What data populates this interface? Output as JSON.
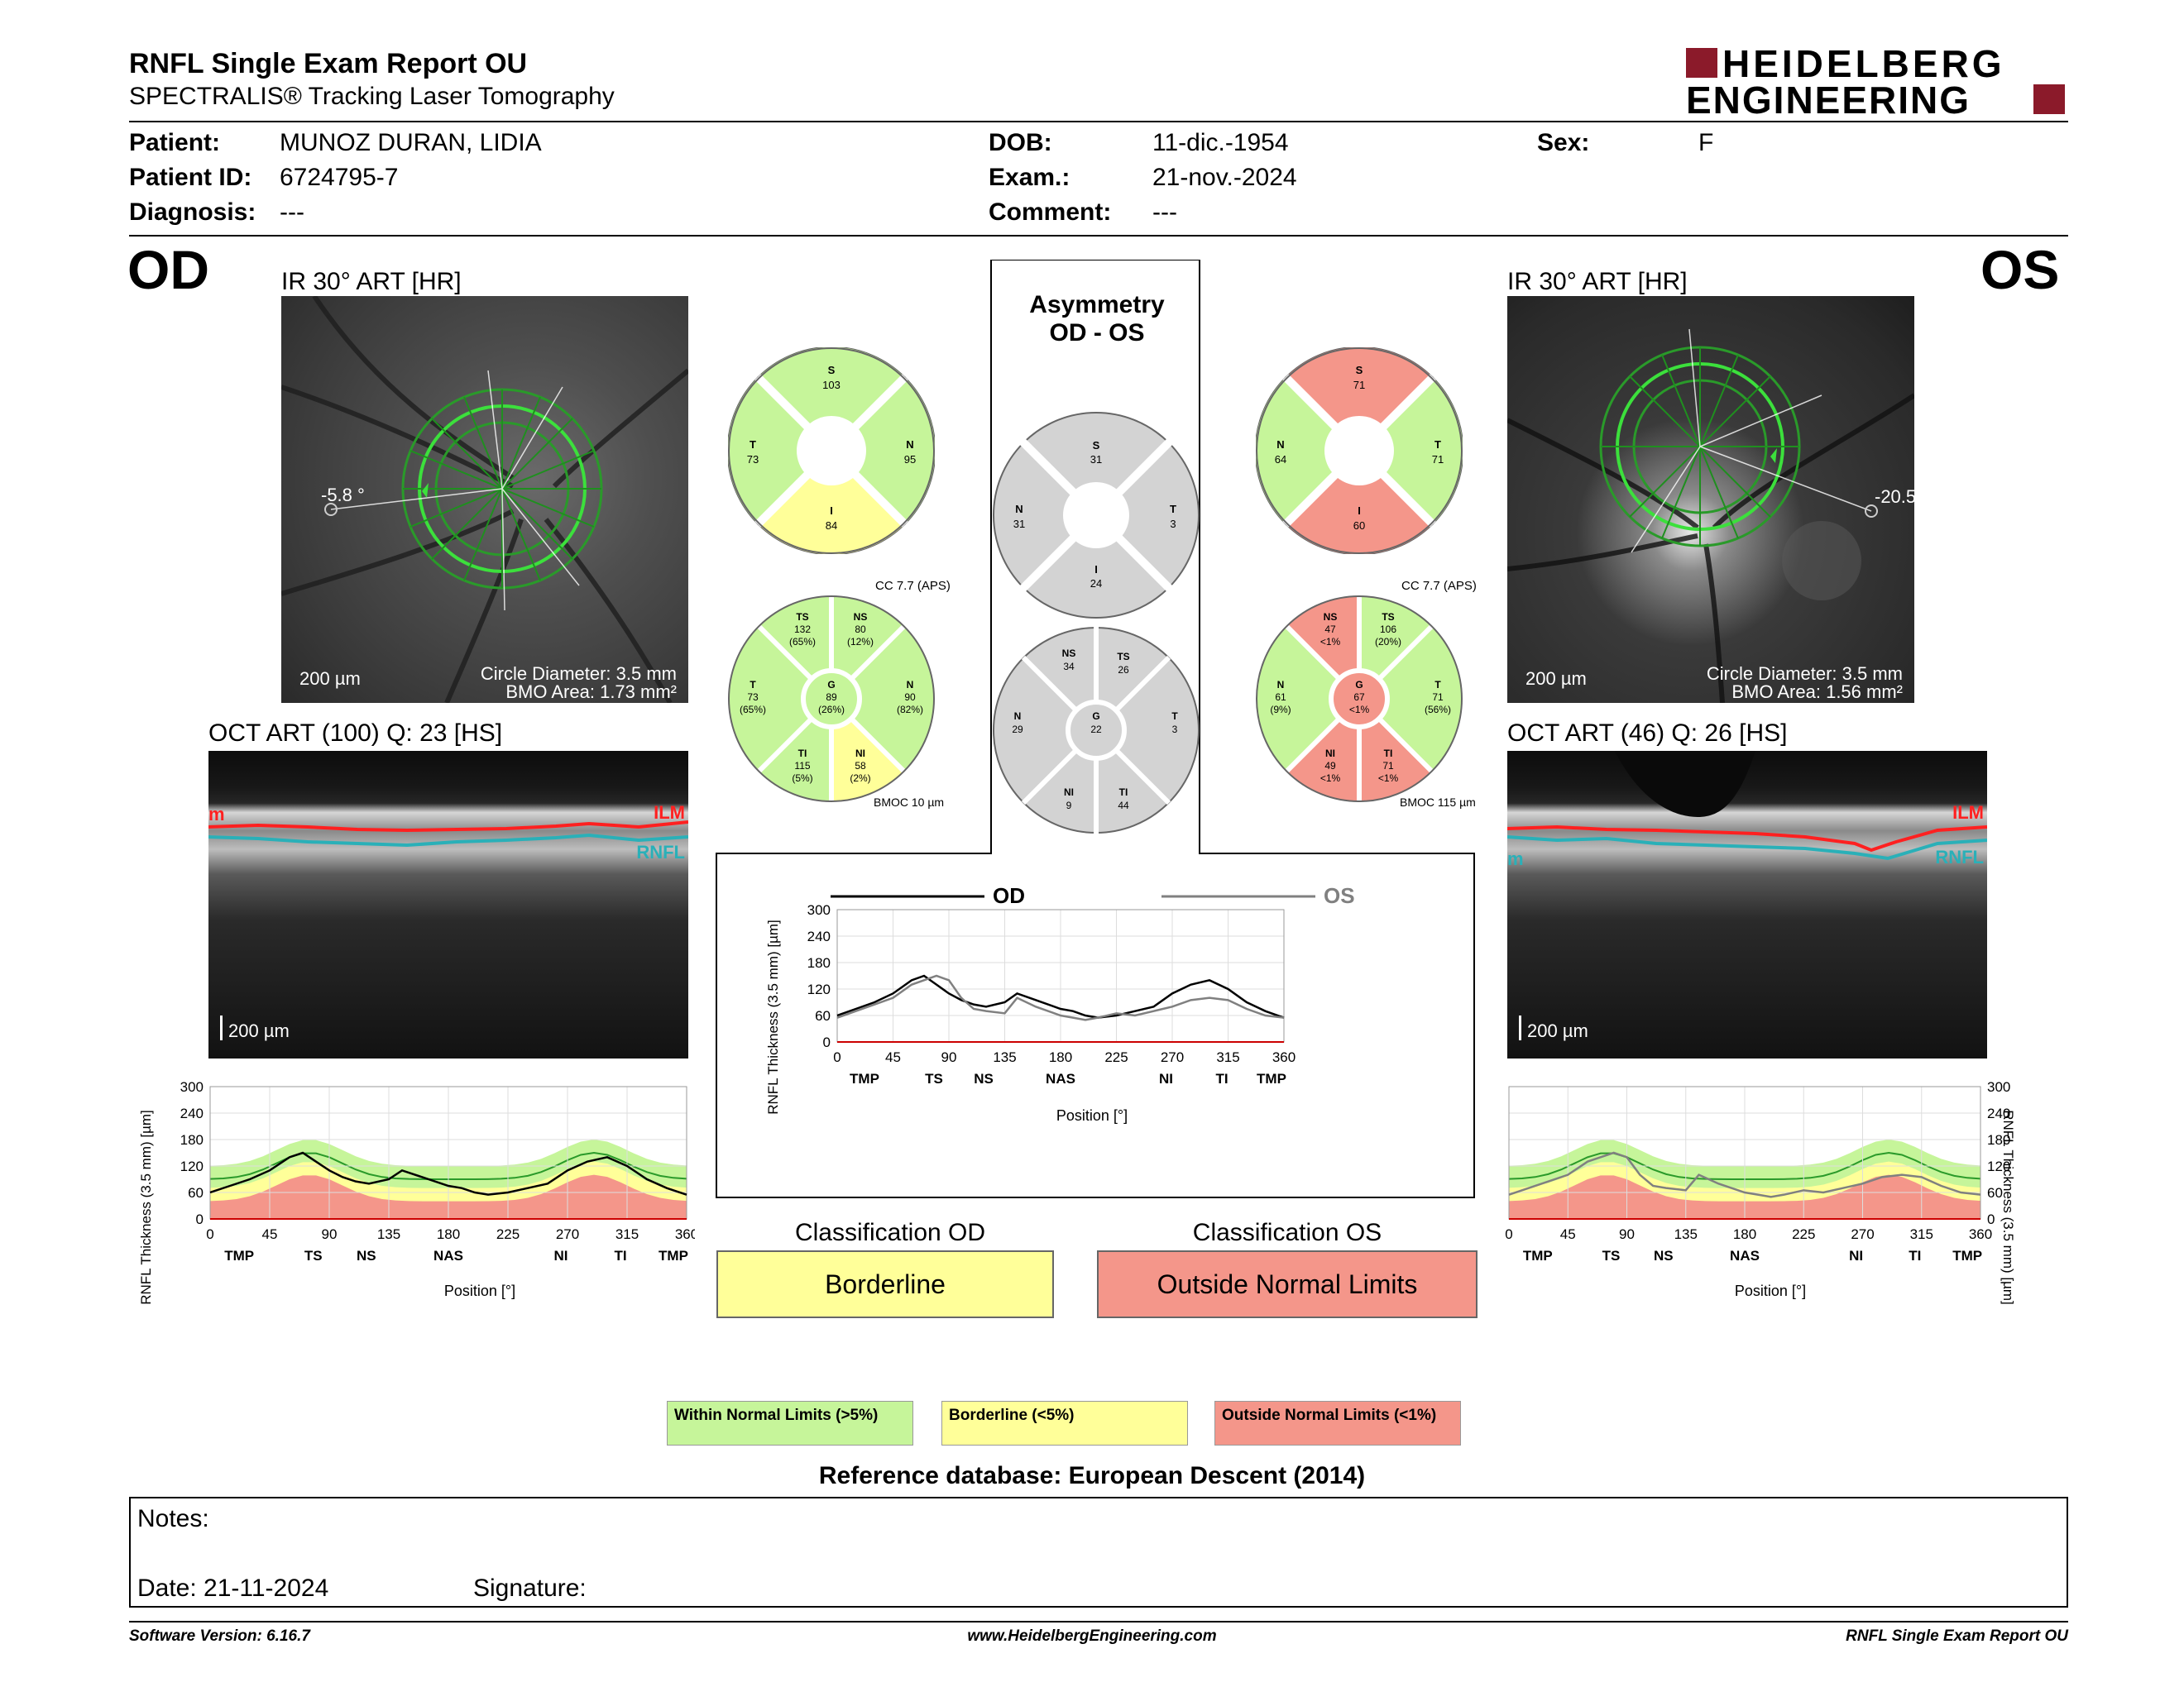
{
  "header": {
    "title": "RNFL Single Exam Report OU",
    "subtitle": "SPECTRALIS® Tracking Laser Tomography",
    "logo_line1": "HEIDELBERG",
    "logo_line2": "ENGINEERING"
  },
  "patient": {
    "patient_label": "Patient:",
    "patient_value": "MUNOZ DURAN, LIDIA",
    "id_label": "Patient ID:",
    "id_value": "6724795-7",
    "diagnosis_label": "Diagnosis:",
    "diagnosis_value": "---",
    "dob_label": "DOB:",
    "dob_value": "11-dic.-1954",
    "exam_label": "Exam.:",
    "exam_value": "21-nov.-2024",
    "comment_label": "Comment:",
    "comment_value": "---",
    "sex_label": "Sex:",
    "sex_value": "F"
  },
  "od": {
    "eye": "OD",
    "ir_title": "IR 30° ART [HR]",
    "angle": "-5.8 °",
    "scale": "200 µm",
    "circle_diameter": "Circle Diameter: 3.5 mm",
    "bmo_area": "BMO Area: 1.73 mm²",
    "oct_title": "OCT ART (100) Q: 23 [HS]",
    "oct_scale": "200 µm",
    "ilm": "ILM",
    "rnfl": "RNFL",
    "edge_mark": "m",
    "sectors6": {
      "S": "103",
      "T": "73",
      "N": "95",
      "I": "84"
    },
    "cc": "CC 7.7 (APS)",
    "bmoc": "BMOC 10 µm",
    "g": {
      "label": "G",
      "value": "89",
      "pct": "(26%)"
    },
    "ts": {
      "label": "TS",
      "value": "132",
      "pct": "(65%)"
    },
    "ns": {
      "label": "NS",
      "value": "80",
      "pct": "(12%)"
    },
    "t": {
      "label": "T",
      "value": "73",
      "pct": "(65%)"
    },
    "n": {
      "label": "N",
      "value": "90",
      "pct": "(82%)"
    },
    "ti": {
      "label": "TI",
      "value": "115",
      "pct": "(5%)"
    },
    "ni": {
      "label": "NI",
      "value": "58",
      "pct": "(2%)"
    },
    "classification_label": "Classification OD",
    "classification": "Borderline"
  },
  "os": {
    "eye": "OS",
    "ir_title": "IR 30° ART [HR]",
    "angle": "-20.5",
    "scale": "200 µm",
    "circle_diameter": "Circle Diameter: 3.5 mm",
    "bmo_area": "BMO Area: 1.56 mm²",
    "oct_title": "OCT ART (46) Q: 26 [HS]",
    "oct_scale": "200 µm",
    "ilm": "ILM",
    "rnfl": "RNFL",
    "edge_mark": "m",
    "sectors6": {
      "S": "71",
      "T": "71",
      "N": "64",
      "I": "60"
    },
    "cc": "CC 7.7 (APS)",
    "bmoc": "BMOC 115 µm",
    "g": {
      "label": "G",
      "value": "67",
      "pct": "<1%"
    },
    "ts": {
      "label": "TS",
      "value": "106",
      "pct": "(20%)"
    },
    "ns": {
      "label": "NS",
      "value": "47",
      "pct": "<1%"
    },
    "t": {
      "label": "T",
      "value": "71",
      "pct": "(56%)"
    },
    "n": {
      "label": "N",
      "value": "61",
      "pct": "(9%)"
    },
    "ti": {
      "label": "TI",
      "value": "71",
      "pct": "<1%"
    },
    "ni": {
      "label": "NI",
      "value": "49",
      "pct": "<1%"
    },
    "classification_label": "Classification OS",
    "classification": "Outside Normal Limits"
  },
  "asymmetry": {
    "title_line1": "Asymmetry",
    "title_line2": "OD - OS",
    "sectors4": {
      "S": "31",
      "N": "31",
      "T": "3",
      "I": "24"
    },
    "ns": {
      "label": "NS",
      "value": "34"
    },
    "ts": {
      "label": "TS",
      "value": "26"
    },
    "n": {
      "label": "N",
      "value": "29"
    },
    "g": {
      "label": "G",
      "value": "22"
    },
    "t": {
      "label": "T",
      "value": "3"
    },
    "ni": {
      "label": "NI",
      "value": "9"
    },
    "ti": {
      "label": "TI",
      "value": "44"
    }
  },
  "chart_labels": {
    "ylabel": "RNFL Thickness (3.5 mm) [µm]",
    "xlabel": "Position [°]",
    "od_legend": "OD",
    "os_legend": "OS",
    "sectors": [
      "TMP",
      "TS",
      "NS",
      "NAS",
      "NI",
      "TI",
      "TMP"
    ]
  },
  "chart_data": [
    {
      "type": "line",
      "title": "",
      "xlabel": "Position [°]",
      "ylabel": "RNFL Thickness (3.5 mm) [µm]",
      "xlim": [
        0,
        360
      ],
      "ylim": [
        0,
        300
      ],
      "xticks": [
        0,
        45,
        90,
        135,
        180,
        225,
        270,
        315,
        360
      ],
      "yticks": [
        0,
        60,
        120,
        180,
        240,
        300
      ],
      "series": [
        {
          "name": "OD",
          "x": [
            0,
            15,
            30,
            45,
            60,
            70,
            80,
            90,
            100,
            110,
            120,
            135,
            145,
            160,
            180,
            190,
            200,
            210,
            225,
            240,
            255,
            270,
            285,
            300,
            315,
            330,
            345,
            360
          ],
          "y": [
            60,
            75,
            90,
            110,
            140,
            150,
            130,
            110,
            95,
            85,
            80,
            90,
            110,
            95,
            75,
            70,
            60,
            55,
            60,
            70,
            80,
            110,
            130,
            140,
            120,
            90,
            70,
            55
          ]
        },
        {
          "name": "OS",
          "x": [
            0,
            15,
            30,
            45,
            60,
            70,
            80,
            90,
            100,
            110,
            120,
            135,
            145,
            160,
            180,
            190,
            200,
            210,
            225,
            240,
            255,
            270,
            285,
            300,
            315,
            330,
            345,
            360
          ],
          "y": [
            55,
            70,
            85,
            100,
            130,
            140,
            150,
            140,
            100,
            75,
            70,
            65,
            100,
            80,
            60,
            55,
            50,
            55,
            65,
            60,
            70,
            80,
            95,
            100,
            95,
            75,
            60,
            55
          ]
        }
      ]
    }
  ],
  "legend": {
    "green": "Within Normal Limits (>5%)",
    "yellow": "Borderline (<5%)",
    "red": "Outside Normal Limits (<1%)"
  },
  "reference": "Reference database: European Descent (2014)",
  "notes": {
    "notes_label": "Notes:",
    "date": "Date: 21-11-2024",
    "signature": "Signature:"
  },
  "footer": {
    "version": "Software Version: 6.16.7",
    "url": "www.HeidelbergEngineering.com",
    "report": "RNFL Single Exam Report OU"
  },
  "colors": {
    "green": "#c6f59a",
    "yellow": "#ffff99",
    "red": "#f4968a",
    "gray": "#d3d3d3",
    "od_line": "#000000",
    "os_line": "#808080"
  }
}
